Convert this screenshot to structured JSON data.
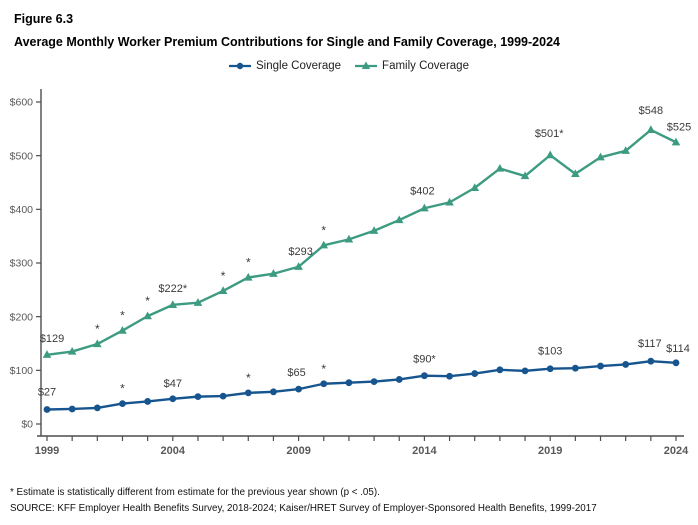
{
  "header": {
    "figure_label": "Figure 6.3",
    "title": "Average Monthly Worker Premium Contributions for Single and Family Coverage, 1999-2024"
  },
  "legend": {
    "items": [
      {
        "label": "Single Coverage",
        "color": "#17558F",
        "marker": "circle"
      },
      {
        "label": "Family Coverage",
        "color": "#3D9B82",
        "marker": "triangle"
      }
    ]
  },
  "chart_data": {
    "type": "line",
    "title": "Average Monthly Worker Premium Contributions for Single and Family Coverage, 1999-2024",
    "xlabel": "",
    "ylabel": "",
    "grid": false,
    "legend_position": "top",
    "x": [
      1999,
      2000,
      2001,
      2002,
      2003,
      2004,
      2005,
      2006,
      2007,
      2008,
      2009,
      2010,
      2011,
      2012,
      2013,
      2014,
      2015,
      2016,
      2017,
      2018,
      2019,
      2020,
      2021,
      2022,
      2023,
      2024
    ],
    "x_tick_years": [
      1999,
      2004,
      2009,
      2014,
      2019,
      2024
    ],
    "ylim": [
      0,
      620
    ],
    "y_ticks": [
      {
        "value": 0,
        "label": "$0"
      },
      {
        "value": 100,
        "label": "$100"
      },
      {
        "value": 200,
        "label": "$200"
      },
      {
        "value": 300,
        "label": "$300"
      },
      {
        "value": 400,
        "label": "$400"
      },
      {
        "value": 500,
        "label": "$500"
      },
      {
        "value": 600,
        "label": "$600"
      }
    ],
    "series": [
      {
        "name": "Single Coverage",
        "color": "#17558F",
        "marker": "circle",
        "values": [
          27,
          28,
          30,
          38,
          42,
          47,
          51,
          52,
          58,
          60,
          65,
          75,
          77,
          79,
          83,
          90,
          89,
          94,
          101,
          99,
          103,
          104,
          108,
          111,
          117,
          114
        ],
        "point_labels": [
          {
            "year": 1999,
            "text": "$27",
            "dx": 0,
            "dy": -14
          },
          {
            "year": 2004,
            "text": "$47",
            "dx": 0,
            "dy": -12
          },
          {
            "year": 2009,
            "text": "$65",
            "dx": -2,
            "dy": -13
          },
          {
            "year": 2014,
            "text": "$90*",
            "dx": 0,
            "dy": -13
          },
          {
            "year": 2019,
            "text": "$103",
            "dx": 0,
            "dy": -14
          },
          {
            "year": 2023,
            "text": "$117",
            "dx": -1,
            "dy": -14
          },
          {
            "year": 2024,
            "text": "$114",
            "dx": 2,
            "dy": -11
          }
        ],
        "asterisk_years": [
          2002,
          2007,
          2010
        ]
      },
      {
        "name": "Family Coverage",
        "color": "#3D9B82",
        "marker": "triangle",
        "values": [
          129,
          135,
          149,
          174,
          201,
          222,
          226,
          248,
          273,
          280,
          293,
          333,
          344,
          360,
          380,
          402,
          413,
          440,
          476,
          462,
          501,
          466,
          497,
          509,
          548,
          525
        ],
        "point_labels": [
          {
            "year": 1999,
            "text": "$129",
            "dx": 5,
            "dy": -13
          },
          {
            "year": 2004,
            "text": "$222*",
            "dx": 0,
            "dy": -13
          },
          {
            "year": 2009,
            "text": "$293",
            "dx": 2,
            "dy": -12
          },
          {
            "year": 2014,
            "text": "$402",
            "dx": -2,
            "dy": -14
          },
          {
            "year": 2019,
            "text": "$501*",
            "dx": -1,
            "dy": -18
          },
          {
            "year": 2023,
            "text": "$548",
            "dx": 0,
            "dy": -16
          },
          {
            "year": 2024,
            "text": "$525",
            "dx": 3,
            "dy": -12
          }
        ],
        "asterisk_years": [
          2001,
          2002,
          2003,
          2006,
          2007,
          2010
        ]
      }
    ]
  },
  "footnotes": {
    "asterisk": "* Estimate is statistically different from estimate for the previous year shown (p < .05).",
    "source": "SOURCE: KFF Employer Health Benefits Survey, 2018-2024; Kaiser/HRET Survey of Employer-Sponsored Health Benefits, 1999-2017"
  }
}
